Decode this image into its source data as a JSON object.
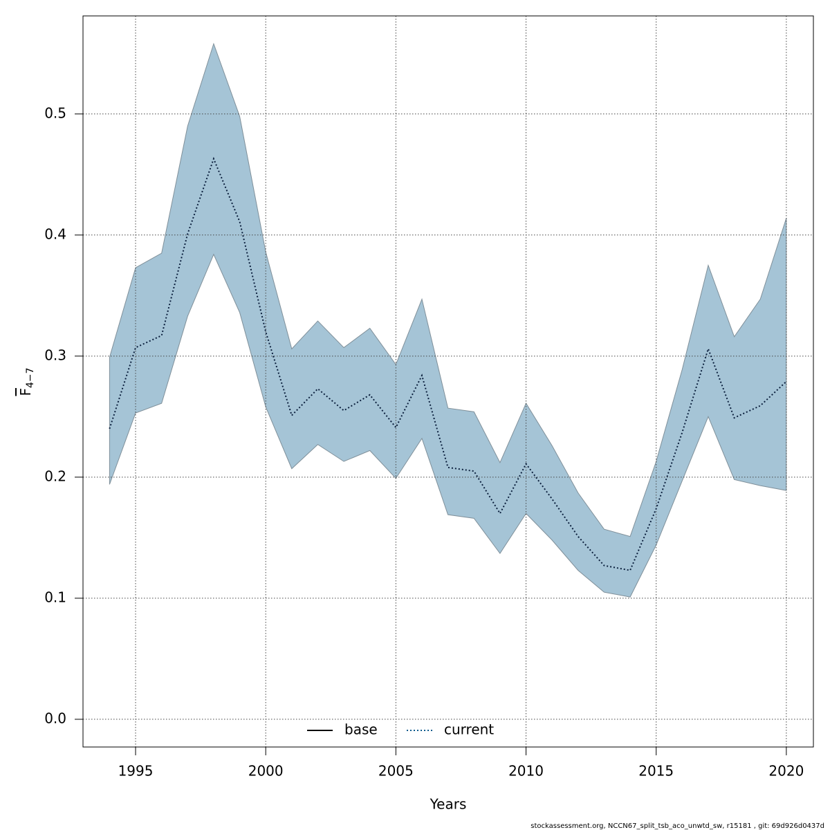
{
  "chart_data": {
    "type": "line",
    "x_label": "Years",
    "y_label": {
      "text": "F",
      "subscript": "4−7"
    },
    "footer": "stockassessment.org, NCCN67_split_tsb_aco_unwtd_sw, r15181 , git: 69d926d0437d",
    "x": [
      1994,
      1995,
      1996,
      1997,
      1998,
      1999,
      2000,
      2001,
      2002,
      2003,
      2004,
      2005,
      2006,
      2007,
      2008,
      2009,
      2010,
      2011,
      2012,
      2013,
      2014,
      2015,
      2016,
      2017,
      2018,
      2019,
      2020
    ],
    "series": [
      {
        "name": "current",
        "color": "#0a1e3c",
        "values": [
          0.24,
          0.307,
          0.317,
          0.401,
          0.463,
          0.411,
          0.32,
          0.251,
          0.273,
          0.255,
          0.268,
          0.241,
          0.284,
          0.208,
          0.205,
          0.17,
          0.211,
          0.182,
          0.151,
          0.127,
          0.123,
          0.174,
          0.237,
          0.306,
          0.249,
          0.259,
          0.279
        ]
      }
    ],
    "band": {
      "color": "#a5c4d6",
      "edge_color": "#7f8f99",
      "upper": [
        0.299,
        0.373,
        0.385,
        0.49,
        0.558,
        0.498,
        0.386,
        0.306,
        0.329,
        0.307,
        0.323,
        0.293,
        0.347,
        0.257,
        0.254,
        0.212,
        0.261,
        0.226,
        0.187,
        0.157,
        0.151,
        0.213,
        0.289,
        0.375,
        0.316,
        0.347,
        0.414
      ],
      "lower": [
        0.194,
        0.253,
        0.261,
        0.333,
        0.384,
        0.336,
        0.258,
        0.207,
        0.227,
        0.213,
        0.222,
        0.199,
        0.232,
        0.169,
        0.166,
        0.137,
        0.17,
        0.148,
        0.123,
        0.105,
        0.101,
        0.144,
        0.197,
        0.25,
        0.198,
        0.193,
        0.189
      ]
    },
    "legend": [
      {
        "label": "base",
        "color": "#000000",
        "dash": "solid"
      },
      {
        "label": "current",
        "color": "#0a5a8c",
        "dash": "dotted"
      }
    ],
    "xlim": [
      1992.98,
      2021.04
    ],
    "xticks": [
      1995,
      2000,
      2005,
      2010,
      2015,
      2020
    ],
    "ylim": [
      -0.0229,
      0.581
    ],
    "yticks": [
      {
        "value": 0,
        "label": "0.0"
      },
      0.1,
      0.2,
      0.3,
      0.4,
      0.5
    ],
    "grid": true
  }
}
